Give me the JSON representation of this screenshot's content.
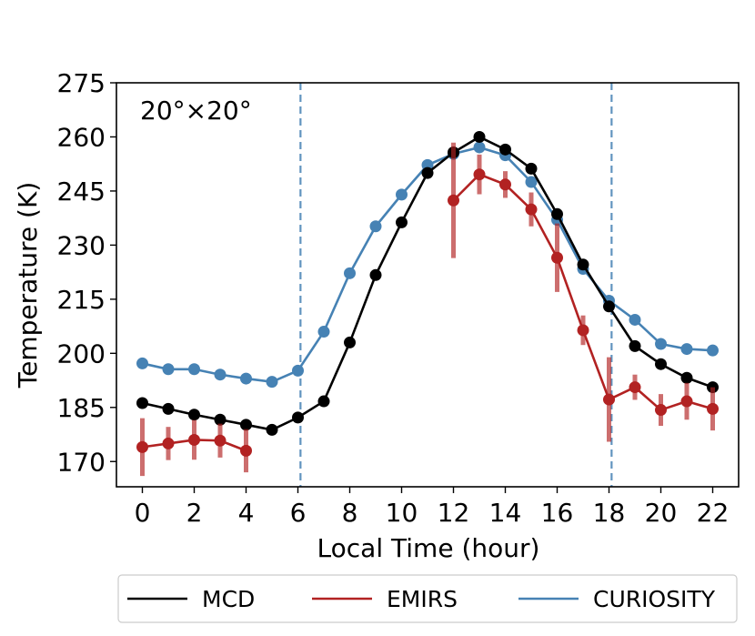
{
  "chart_data": {
    "type": "line",
    "annotation": "20°×20°",
    "xlabel": "Local Time (hour)",
    "ylabel": "Temperature (K)",
    "xlim": [
      -1,
      23
    ],
    "ylim": [
      163,
      275
    ],
    "xticks": [
      0,
      2,
      4,
      6,
      8,
      10,
      12,
      14,
      16,
      18,
      20,
      22
    ],
    "yticks": [
      170,
      185,
      200,
      215,
      230,
      245,
      260,
      275
    ],
    "vlines": [
      6.1,
      18.1
    ],
    "legend_position": "bottom-outside",
    "series": [
      {
        "name": "MCD",
        "color": "#000000",
        "x": [
          0,
          1,
          2,
          3,
          4,
          5,
          6,
          7,
          8,
          9,
          10,
          11,
          12,
          13,
          14,
          15,
          16,
          17,
          18,
          19,
          20,
          21,
          22
        ],
        "y": [
          186.2,
          184.6,
          183.0,
          181.6,
          180.2,
          178.8,
          182.2,
          186.7,
          203.0,
          221.7,
          236.3,
          250.0,
          255.7,
          260.0,
          256.5,
          251.2,
          238.6,
          224.6,
          213.0,
          202.0,
          197.0,
          193.2,
          190.6
        ]
      },
      {
        "name": "EMIRS",
        "color": "#b22222",
        "x": [
          0,
          1,
          2,
          3,
          4,
          12,
          13,
          14,
          15,
          16,
          17,
          18,
          19,
          20,
          21,
          22
        ],
        "y": [
          174.0,
          175.0,
          176.0,
          175.8,
          173.0,
          242.4,
          249.6,
          246.8,
          239.9,
          226.5,
          206.4,
          187.2,
          190.6,
          184.3,
          186.7,
          184.6
        ],
        "err": [
          8.0,
          4.6,
          5.5,
          4.7,
          6.0,
          16.0,
          5.5,
          3.7,
          4.7,
          9.5,
          4.1,
          11.7,
          3.5,
          4.4,
          5.1,
          6.0
        ]
      },
      {
        "name": "CURIOSITY",
        "color": "#4682b4",
        "x": [
          0,
          1,
          2,
          3,
          4,
          5,
          6,
          7,
          8,
          9,
          10,
          11,
          12,
          13,
          14,
          15,
          16,
          17,
          18,
          19,
          20,
          21,
          22
        ],
        "y": [
          197.2,
          195.6,
          195.6,
          194.1,
          193.0,
          192.1,
          195.2,
          206.0,
          222.2,
          235.2,
          244.0,
          252.2,
          255.3,
          257.1,
          254.9,
          247.5,
          237.0,
          223.4,
          214.6,
          209.3,
          202.6,
          201.2,
          200.8
        ]
      }
    ]
  }
}
